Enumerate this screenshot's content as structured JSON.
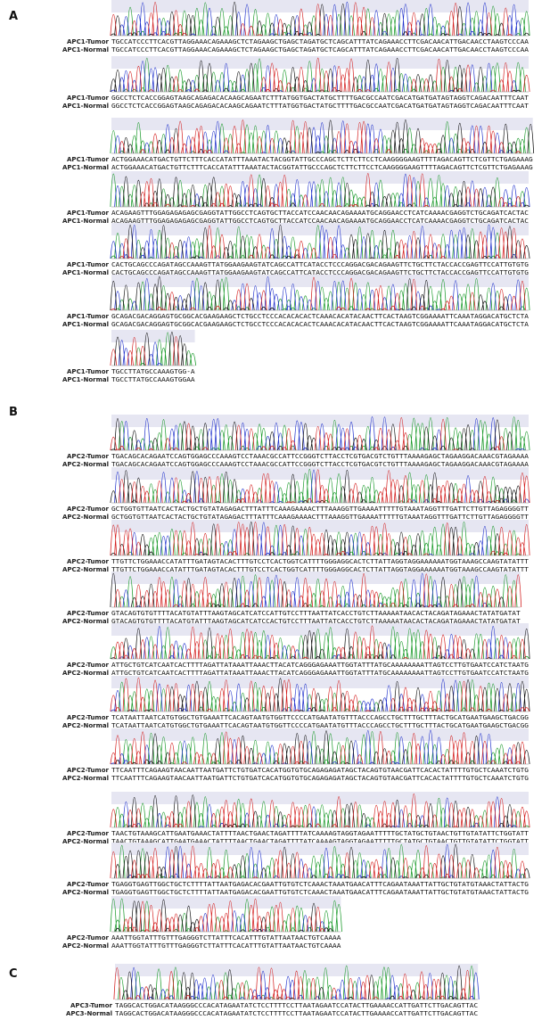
{
  "panels": [
    {
      "label": "A",
      "rows": [
        {
          "tumor_label": "APC1-Tumor",
          "tumor_seq": "TGCCATCCCTTCACGTTAGGAAACAGAAAGCTCTAGAAGCTGAGCTAGATGCTCAGCATTTATCAGAAACCTTCGACAACATTGACAACCTAAGTCCCAA",
          "normal_label": "APC1-Normal",
          "normal_seq": "TGCCATCCCTTCACGTTAGGAAACAGAAAGCTCTAGAAGCTGAGCTAGATGCTCAGCATTTATCAGAAACCTTCGACAACATTGACAACCTAAGTCCCAA"
        },
        {
          "tumor_label": "APC1-Tumor",
          "tumor_seq": "GGCCTCTCACCGGAGTAAGCAGAGACACAAGCAGAATCTTTATGGTGACTATGCTTTTGACGCCAATCGACATGATGATAGTAGGTCAGACAATTTCAAT",
          "normal_label": "APC1-Normal",
          "normal_seq": "GGCCTCTCACCGGAGTAAGCAGAGACACAAGCAGAATCTTTATGGTGACTATGCTTTTGACGCCAATCGACATGATGATAGTAGGTCAGACAATTTCAAT"
        },
        {
          "tumor_label": "APC1-Tumor",
          "tumor_seq": "ACTGGAAACATGACTGTTCTTTCACCATATTTAAATACTACGGTATTGCCCAGCTCTTCTTCCTCAAGGGGAAGTTTTAGACAGTTCTCGTTCTGAGAAAG",
          "normal_label": "APC1-Normal",
          "normal_seq": "ACTGGAAACATGACTGTTCTTTCACCATATTTAAATACTACGGTATTGCCCAGCTCTTCTTCCTCAAGGGGAAGTTTTAGACAGTTCTCGTTCTGAGAAAG"
        },
        {
          "tumor_label": "APC1-Tumor",
          "tumor_seq": "ACAGAAGTTTGGAGAGAGAGCGAGGTATTGGCCTCAGTGCTTACCATCCAACAACAGAAAATGCAGGAACCTCATCAAAACGAGGTCTGCAGATCACTAC",
          "normal_label": "APC1-Normal",
          "normal_seq": "ACAGAAGTTTGGAGAGAGAGCGAGGTATTGGCCTCAGTGCTTACCATCCAACAACAGAAAATGCAGGAACCTCATCAAAACGAGGTCTGCAGATCACTAC"
        },
        {
          "tumor_label": "APC1-Tumor",
          "tumor_seq": "CACTGCAGCCCAGATAGCCAAAGTTATGGAAGAAGTATCAGCCATTCATACCTCCCAGGACGACAGAAGTTCTGCTTCTACCACCGAGTTCCATTGTGTG",
          "normal_label": "APC1-Normal",
          "normal_seq": "CACTGCAGCCCAGATAGCCAAAGTTATGGAAGAAGTATCAGCCATTCATACCTCCCAGGACGACAGAAGTTCTGCTTCTACCACCGAGTTCCATTGTGTG"
        },
        {
          "tumor_label": "APC1-Tumor",
          "tumor_seq": "GCAGACGACAGGAGTGCGGCACGAAGAAGCTCTGCCTCCCACACACACTCAAACACATACAACTTCACTAAGTCGGAAAATTCAAATAGGACATGCTCTA",
          "normal_label": "APC1-Normal",
          "normal_seq": "GCAGACGACAGGAGTGCGGCACGAAGAAGCTCTGCCTCCCACACACACTCAAACACATACAACTTCACTAAGTCGGAAAATTCAAATAGGACATGCTCTA"
        },
        {
          "tumor_label": "APC1-Tumor",
          "tumor_seq": "TGCCTTATGCCAAAGTGG-A",
          "normal_label": "APC1-Normal",
          "normal_seq": "TGCCTTATGCCAAAGTGGAA"
        }
      ]
    },
    {
      "label": "B",
      "rows": [
        {
          "tumor_label": "APC2-Tumor",
          "tumor_seq": "TGACAGCACAGAATCCAGTGGAGCCCAAAGTCCTAAACGCCATTCCGGGTCTTACCTCGTGACGTCTGTTTAAAAGAGCTAGAAGGACAAACGTAGAAAA",
          "normal_label": "APC2-Normal",
          "normal_seq": "TGACAGCACAGAATCCAGTGGAGCCCAAAGTCCTAAACGCCATTCCGGGTCTTACCTCGTGACGTCTGTTTAAAAGAGCTAGAAGGACAAACGTAGAAAA"
        },
        {
          "tumor_label": "APC2-Tumor",
          "tumor_seq": "GCTGGTGTTAATCACTACTGCTGTATAGAGACTTTATTTCAAAGAAAACTTTAAAGGTTGAAAATTTTTGTAAATAGGTTTGATTCTTGTTAGAGGGGTT",
          "normal_label": "APC2-Normal",
          "normal_seq": "GCTGGTGTTAATCACTACTGCTGTATAGAGACTTTATTTCAAAGAAAACTTTAAAGGTTGAAAATTTTTGTAAATAGGTTTGATTCTTGTTAGAGGGGTT"
        },
        {
          "tumor_label": "APC2-Tumor",
          "tumor_seq": "TTGTTCTGGAAACCATATTTGATAGTACACTTTGTCCTCACTGGTCATTTTGGGAGGCACTCTTATTAGGTAGGAAAAAATGGTAAAGCCAAGTATATTT",
          "normal_label": "APC2-Normal",
          "normal_seq": "TTGTTCTGGAAACCATATTTGATAGTACACTTTGTCCTCACTGGTCATTTTGGGAGGCACTCTTATTAGGTAGGAAAAAATGGTAAAGCCAAGTATATTT"
        },
        {
          "tumor_label": "APC2-Tumor",
          "tumor_seq": "GTACAGTGTGTTTTACATGTATTTAAGTAGCATCATCCATTGTCCTTTAATTATCACCTGTCTTAAAAATAACACTACAGATAGAAACTATATGATAT",
          "normal_label": "APC2-Normal",
          "normal_seq": "GTACAGTGTGTTTTACATGTATTTAAGTAGCATCATCCACTGTCCTTTAATTATCACCTGTCTTAAAAATAACACTACAGATAGAAACTATATGATAT"
        },
        {
          "tumor_label": "APC2-Tumor",
          "tumor_seq": "ATTGCTGTCATCAATCACTTTTAGATTATAAATTAAACTTACATCAGGGAGAAATTGGTATTTATGCAAAAAAAATTAGTCCTTGTGAATCCATCTAATG",
          "normal_label": "APC2-Normal",
          "normal_seq": "ATTGCTGTCATCAATCACTTTTAGATTATAAATTAAACTTACATCAGGGAGAAATTGGTATTTATGCAAAAAAAATTAGTCCTTGTGAATCCATCTAATG"
        },
        {
          "tumor_label": "APC2-Tumor",
          "tumor_seq": "TCATAATTAATCATGTGGCTGTGAAATTCACAGTAATGTGGTTCCCCATGAATATGTTTACCCAGCCTGCTTTGCTTTACTGCATGAATGAAGCTGACGG",
          "normal_label": "APC2-Normal",
          "normal_seq": "TCATAATTAATCATGTGGCTGTGAAATTCACAGTAATGTGGTTCCCCATGAATATGTTTACCCAGCCTGCTTTGCTTTACTGCATGAATGAAGCTGACGG"
        },
        {
          "tumor_label": "APC2-Tumor",
          "tumor_seq": "TTCAATTTCAGAAGTAACAATTAATGATTCTGTGATCACATGGTGTGCAGAGAGATAGCTACAGTGTAACGATTCACACTATTTTGTGCTCAAATCTGTG",
          "normal_label": "APC2-Normal",
          "normal_seq": "TTCAATTTCAGAAGTAACAATTAATGATTCTGTGATCACATGGTGTGCAGAGAGATAGCTACAGTGTAACGATTCACACTATTTTGTGCTCAAATCTGTG"
        },
        {
          "tumor_label": "APC2-Tumor",
          "tumor_seq": "TAACTGTAAAGCATTGAATGAAACTATTTTAACTGAACTAGATTTTATCAAAAGTAGGTAGAATTTTTGCTATGCTGTAACTGTTGTATATTCTGGTATT",
          "normal_label": "APC2-Normal",
          "normal_seq": "TAACTGTAAAGCATTGAATGAAACTATTTTAACTGAACTAGATTTTATCAAAAGTAGGTAGAATTTTTGCTATGCTGTAACTGTTGTATATTCTGGTATT"
        },
        {
          "tumor_label": "APC2-Tumor",
          "tumor_seq": "TGAGGTGAGTTGGCTGCTCTTTTATTAATGAGACACGAATTGTGTCTCAAACTAAATGAACATTTCAGAATAAATTATTGCTGTATGTAAACTATTACTG",
          "normal_label": "APC2-Normal",
          "normal_seq": "TGAGGTGAGTTGGCTGCTCTTTTATTAATGAGACACGAATTGTGTCTCAAACTAAATGAACATTTCAGAATAAATTATTGCTGTATGTAAACTATTACTG"
        },
        {
          "tumor_label": "APC2-Tumor",
          "tumor_seq": "AAATTGGTATTTGTTTGAGGGTCTTATTTCACATTTGTATTAATAACTGTCAAAA",
          "normal_label": "APC2-Normal",
          "normal_seq": "AAATTGGTATTTGTTTGAGGGTCTTATTTCACATTTGTATTAATAACTGTCAAAA"
        }
      ]
    },
    {
      "label": "C",
      "rows": [
        {
          "tumor_label": "APC3-Tumor",
          "tumor_seq": "TAGGCACTGGACATAAGGGCCCACATAGAATATCTCCTTTTCCTTAATAGAATCCATACTTGAAAACCATTGATTCTTGACAGTTAC",
          "normal_label": "APC3-Normal",
          "normal_seq": "TAGGCACTGGACATAAGGGCCCACATAGAATATCTCCTTTTCCTTAATAGAATCCATACTTGAAAACCATTGATTCTTGACAGTTAC"
        }
      ]
    }
  ]
}
